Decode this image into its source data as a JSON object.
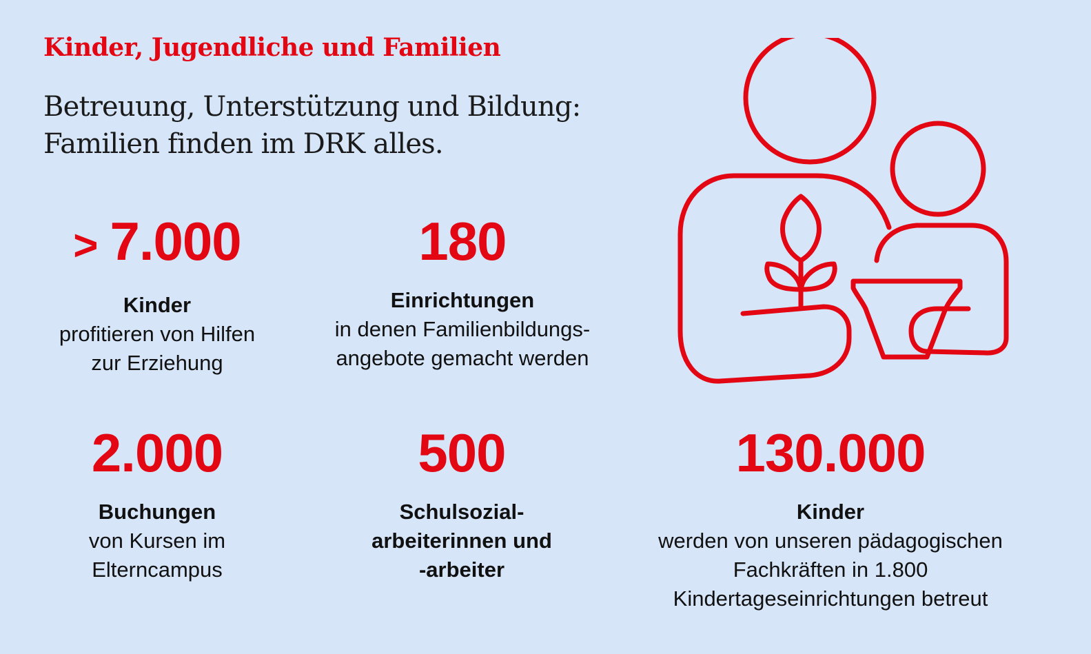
{
  "header": {
    "title": "Kinder, Jugendliche und Familien",
    "subtitle_lines": [
      "Betreuung, Unterstützung und Bildung:",
      "Familien finden im DRK alles."
    ]
  },
  "stats": [
    {
      "prefix": ">",
      "value": "7.000",
      "label": "Kinder",
      "desc": [
        "profitieren von Hilfen",
        "zur Erziehung"
      ]
    },
    {
      "value": "180",
      "label": "Einrichtungen",
      "desc": [
        "in denen Familienbildungs-",
        "angebote gemacht werden"
      ]
    },
    {
      "value": "2.000",
      "label": "Buchungen",
      "desc": [
        "von Kursen im",
        "Elterncampus"
      ]
    },
    {
      "value": "500",
      "label_lines": [
        "Schulsozial-",
        "arbeiterinnen und",
        "-arbeiter"
      ]
    },
    {
      "value": "130.000",
      "label": "Kinder",
      "desc": [
        "werden von unseren pädagogischen",
        "Fachkräften in 1.800",
        "Kindertageseinrichtungen betreut"
      ]
    }
  ],
  "illustration": {
    "icon": "parent-child-plant-icon"
  },
  "colors": {
    "accent": "#e30613",
    "background": "#d6e5f8",
    "text": "#111111"
  }
}
